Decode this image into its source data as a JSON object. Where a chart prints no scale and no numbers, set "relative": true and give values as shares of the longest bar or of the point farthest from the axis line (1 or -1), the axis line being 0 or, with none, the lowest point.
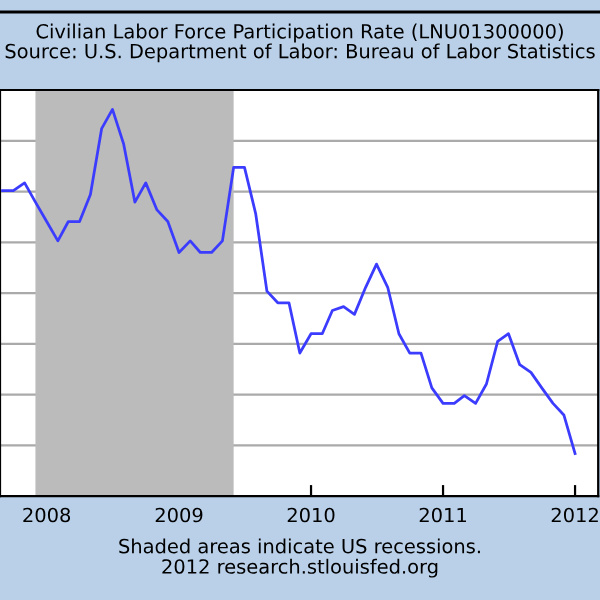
{
  "chart_data": {
    "type": "line",
    "title": "Civilian Labor Force Participation Rate (LNU01300000)",
    "subtitle": "Source: U.S. Department of Labor: Bureau of Labor Statistics",
    "annotations": [
      "Shaded areas indicate US recessions.",
      "2012 research.stlouisfed.org"
    ],
    "relative": true,
    "x": [
      "2007-09",
      "2007-10",
      "2007-11",
      "2007-12",
      "2008-01",
      "2008-02",
      "2008-03",
      "2008-04",
      "2008-05",
      "2008-06",
      "2008-07",
      "2008-08",
      "2008-09",
      "2008-10",
      "2008-11",
      "2008-12",
      "2009-01",
      "2009-02",
      "2009-03",
      "2009-04",
      "2009-05",
      "2009-06",
      "2009-07",
      "2009-08",
      "2009-09",
      "2009-10",
      "2009-11",
      "2009-12",
      "2010-01",
      "2010-02",
      "2010-03",
      "2010-04",
      "2010-05",
      "2010-06",
      "2010-07",
      "2010-08",
      "2010-09",
      "2010-10",
      "2010-11",
      "2010-12",
      "2011-01",
      "2011-02",
      "2011-03",
      "2011-04",
      "2011-05",
      "2011-06",
      "2011-07",
      "2011-08",
      "2011-09",
      "2011-10",
      "2011-11",
      "2011-12",
      "2012-01"
    ],
    "series": [
      {
        "color": "#3c3cff",
        "values": [
          0.79,
          0.79,
          0.81,
          0.76,
          0.71,
          0.66,
          0.71,
          0.71,
          0.78,
          0.95,
          1.0,
          0.91,
          0.76,
          0.81,
          0.74,
          0.71,
          0.63,
          0.66,
          0.63,
          0.63,
          0.66,
          0.85,
          0.85,
          0.73,
          0.53,
          0.5,
          0.5,
          0.37,
          0.42,
          0.42,
          0.48,
          0.49,
          0.47,
          0.54,
          0.6,
          0.54,
          0.42,
          0.37,
          0.37,
          0.28,
          0.24,
          0.24,
          0.26,
          0.24,
          0.29,
          0.4,
          0.42,
          0.34,
          0.32,
          0.28,
          0.24,
          0.21,
          0.11
        ]
      }
    ],
    "xlim": [
      "2007-08-25",
      "2012-03-05"
    ],
    "xticks": [
      {
        "value": "2008-01-01",
        "label": "2008"
      },
      {
        "value": "2009-01-01",
        "label": "2009"
      },
      {
        "value": "2010-01-01",
        "label": "2010"
      },
      {
        "value": "2011-01-01",
        "label": "2011"
      },
      {
        "value": "2012-01-01",
        "label": "2012"
      }
    ],
    "bands": [
      {
        "axis": "x",
        "from": "2007-12",
        "to": "2009-06",
        "color": "#bbbbbb"
      }
    ],
    "grid": "y",
    "tick_labels": "x",
    "legend": false,
    "marker": "none",
    "line_style": "solid"
  }
}
